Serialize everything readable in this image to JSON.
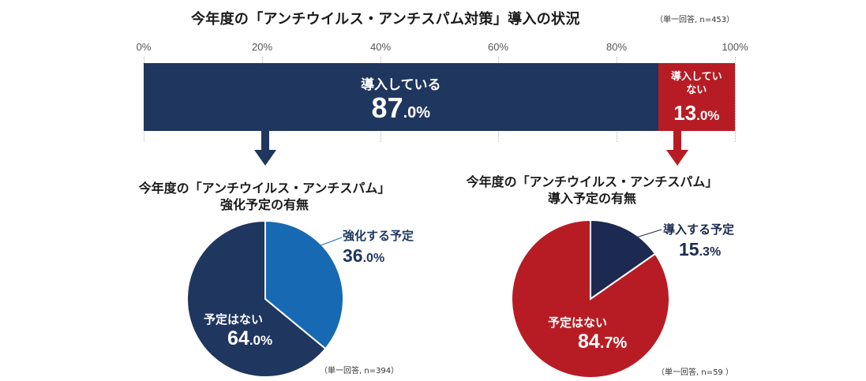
{
  "main": {
    "title": "今年度の「アンチウイルス・アンチスパム対策」導入の状況",
    "note": "（単一回答, n=453）",
    "axis_ticks": [
      "0%",
      "20%",
      "40%",
      "60%",
      "80%",
      "100%"
    ],
    "segments": [
      {
        "label": "導入している",
        "int": "87",
        "dec": ".0%",
        "color": "#1f365f"
      },
      {
        "label": "導入していない",
        "int": "13",
        "dec": ".0%",
        "color": "#b71c24"
      }
    ]
  },
  "left_pie": {
    "title_line1": "今年度の「アンチウイルス・アンチスパム」",
    "title_line2": "強化予定の有無",
    "note": "（単一回答, n=394）",
    "slices": [
      {
        "label": "強化する予定",
        "int": "36",
        "dec": ".0%",
        "color": "#1769b3"
      },
      {
        "label": "予定はない",
        "int": "64",
        "dec": ".0%",
        "color": "#1f365f"
      }
    ]
  },
  "right_pie": {
    "title_line1": "今年度の「アンチウイルス・アンチスパム」",
    "title_line2": "導入予定の有無",
    "note": "（単一回答, n=59 ）",
    "slices": [
      {
        "label": "導入する予定",
        "int": "15",
        "dec": ".3%",
        "color": "#1c2a52"
      },
      {
        "label": "予定はない",
        "int": "84",
        "dec": ".7%",
        "color": "#b71c24"
      }
    ]
  },
  "chart_data": [
    {
      "type": "bar",
      "title": "今年度の「アンチウイルス・アンチスパム対策」導入の状況",
      "orientation": "horizontal-stacked",
      "categories": [
        "導入している",
        "導入していない"
      ],
      "values": [
        87.0,
        13.0
      ],
      "xlim": [
        0,
        100
      ],
      "xticks": [
        "0%",
        "20%",
        "40%",
        "60%",
        "80%",
        "100%"
      ],
      "grid": true
    },
    {
      "type": "pie",
      "title": "今年度の「アンチウイルス・アンチスパム」強化予定の有無",
      "categories": [
        "強化する予定",
        "予定はない"
      ],
      "values": [
        36.0,
        64.0
      ]
    },
    {
      "type": "pie",
      "title": "今年度の「アンチウイルス・アンチスパム」導入予定の有無",
      "categories": [
        "導入する予定",
        "予定はない"
      ],
      "values": [
        15.3,
        84.7
      ]
    }
  ]
}
